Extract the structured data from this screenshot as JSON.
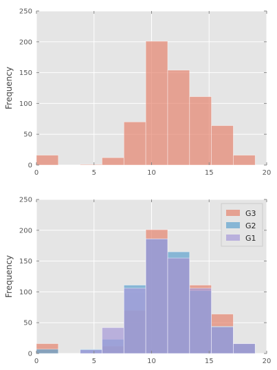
{
  "chart_data": [
    {
      "type": "bar",
      "ylabel": "Frequency",
      "xlim": [
        0,
        20
      ],
      "ylim": [
        0,
        250
      ],
      "x_ticks": [
        "0",
        "5",
        "10",
        "15",
        "20"
      ],
      "y_ticks": [
        "0",
        "50",
        "100",
        "150",
        "200",
        "250"
      ],
      "grid": true,
      "legend": false,
      "bin_edges": [
        0,
        1.9,
        3.8,
        5.7,
        7.6,
        9.5,
        11.4,
        13.3,
        15.2,
        17.1,
        19
      ],
      "series": [
        {
          "values": [
            16,
            0,
            1,
            12,
            70,
            201,
            154,
            111,
            64,
            16
          ],
          "color": "#e5846f"
        }
      ]
    },
    {
      "type": "bar",
      "ylabel": "Frequency",
      "xlim": [
        0,
        20
      ],
      "ylim": [
        0,
        250
      ],
      "x_ticks": [
        "0",
        "5",
        "10",
        "15",
        "20"
      ],
      "y_ticks": [
        "0",
        "50",
        "100",
        "150",
        "200",
        "250"
      ],
      "grid": true,
      "legend": true,
      "legend_position": "top-right",
      "bin_edges": [
        0,
        1.9,
        3.8,
        5.7,
        7.6,
        9.5,
        11.4,
        13.3,
        15.2,
        17.1,
        19
      ],
      "series": [
        {
          "name": "G3",
          "values": [
            16,
            0,
            1,
            12,
            70,
            201,
            154,
            111,
            64,
            16
          ],
          "color": "#e5846f"
        },
        {
          "name": "G2",
          "values": [
            7,
            0,
            7,
            23,
            111,
            186,
            165,
            102,
            44,
            16
          ],
          "color": "#5fa2cf"
        },
        {
          "name": "G1",
          "values": [
            0,
            0,
            6,
            42,
            106,
            186,
            155,
            106,
            43,
            16
          ],
          "color": "#a79ad8"
        }
      ]
    }
  ]
}
